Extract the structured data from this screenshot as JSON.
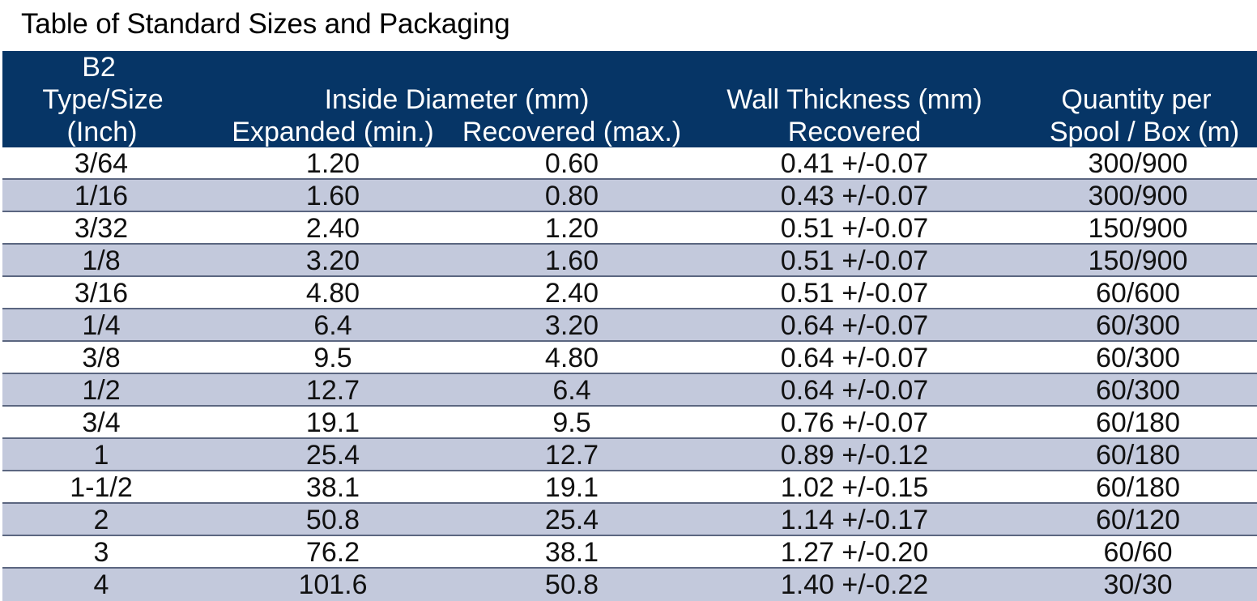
{
  "title": "Table of Standard Sizes and Packaging",
  "colors": {
    "header_bg": "#063566",
    "header_text": "#ffffff",
    "row_alt_bg": "#c3c9dc",
    "row_plain_bg": "#ffffff",
    "row_divider": "#5b6680"
  },
  "table": {
    "headers": {
      "type_size": [
        "B2",
        "Type/Size",
        "(Inch)"
      ],
      "inside_diameter": "Inside Diameter (mm)",
      "expanded": "Expanded (min.)",
      "recovered_max": "Recovered (max.)",
      "wall_thickness": "Wall Thickness (mm)",
      "wall_recovered": "Recovered",
      "quantity": [
        "Quantity per",
        "Spool / Box (m)"
      ]
    },
    "rows": [
      [
        "3/64",
        "1.20",
        "0.60",
        "0.41 +/-0.07",
        "300/900"
      ],
      [
        "1/16",
        "1.60",
        "0.80",
        "0.43 +/-0.07",
        "300/900"
      ],
      [
        "3/32",
        "2.40",
        "1.20",
        "0.51 +/-0.07",
        "150/900"
      ],
      [
        "1/8",
        "3.20",
        "1.60",
        "0.51 +/-0.07",
        "150/900"
      ],
      [
        "3/16",
        "4.80",
        "2.40",
        "0.51 +/-0.07",
        "60/600"
      ],
      [
        "1/4",
        "6.4",
        "3.20",
        "0.64 +/-0.07",
        "60/300"
      ],
      [
        "3/8",
        "9.5",
        "4.80",
        "0.64 +/-0.07",
        "60/300"
      ],
      [
        "1/2",
        "12.7",
        "6.4",
        "0.64 +/-0.07",
        "60/300"
      ],
      [
        "3/4",
        "19.1",
        "9.5",
        "0.76 +/-0.07",
        "60/180"
      ],
      [
        "1",
        "25.4",
        "12.7",
        "0.89 +/-0.12",
        "60/180"
      ],
      [
        "1-1/2",
        "38.1",
        "19.1",
        "1.02 +/-0.15",
        "60/180"
      ],
      [
        "2",
        "50.8",
        "25.4",
        "1.14 +/-0.17",
        "60/120"
      ],
      [
        "3",
        "76.2",
        "38.1",
        "1.27 +/-0.20",
        "60/60"
      ],
      [
        "4",
        "101.6",
        "50.8",
        "1.40 +/-0.22",
        "30/30"
      ]
    ]
  }
}
